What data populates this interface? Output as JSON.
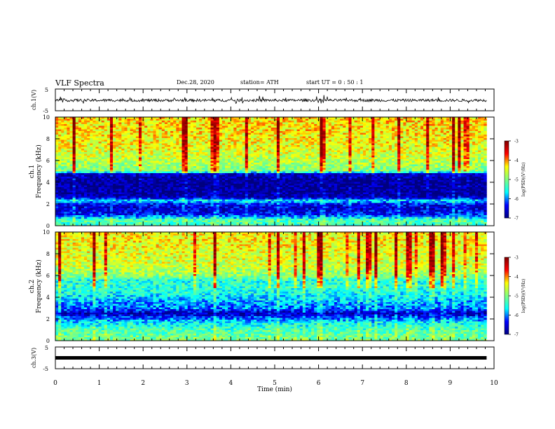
{
  "header": {
    "title": "VLF Spectra",
    "date": "Dec.28, 2020",
    "station": "station= ATH",
    "start_ut": "start  UT  =   0  : 50 : 1"
  },
  "colormap": {
    "stops": [
      "#00007f",
      "#0000ff",
      "#00ffff",
      "#7fff7f",
      "#ffff00",
      "#ff0000",
      "#7f0000"
    ]
  },
  "chart_data": [
    {
      "type": "line",
      "name": "ch1-waveform",
      "ylabel": "ch.1(V)",
      "ylim": [
        -5,
        5
      ],
      "yticks": [
        "5",
        "-5"
      ],
      "x_range_min": [
        0,
        9.83
      ],
      "baseline_v": -0.2,
      "noise_v": 0.6
    },
    {
      "type": "heatmap",
      "name": "ch1-spectrogram",
      "ylabel": "ch.1\nFrequency (kHz)",
      "ylabel_line1": "ch.1",
      "ylabel_line2": "Frequency  (kHz)",
      "ylim": [
        0,
        10
      ],
      "yticks": [
        "0",
        "2",
        "4",
        "6",
        "8",
        "10"
      ],
      "x_range_min": [
        0,
        9.83
      ],
      "colorbar": {
        "label": "log(PSD)(V²/Hz)",
        "range": [
          -7,
          -3
        ],
        "ticks": [
          "-3",
          "-4",
          "-5",
          "-6",
          "-7"
        ]
      },
      "profile_khz_log_psd": [
        [
          0,
          -5.4
        ],
        [
          0.5,
          -5.2
        ],
        [
          1.0,
          -6.3
        ],
        [
          1.5,
          -6.6
        ],
        [
          2.0,
          -6.4
        ],
        [
          2.3,
          -5.6
        ],
        [
          2.6,
          -6.7
        ],
        [
          3.0,
          -6.8
        ],
        [
          4.0,
          -6.9
        ],
        [
          4.8,
          -6.6
        ],
        [
          5.0,
          -5.0
        ],
        [
          6.0,
          -4.7
        ],
        [
          7.0,
          -4.5
        ],
        [
          8.0,
          -4.4
        ],
        [
          9.0,
          -4.3
        ],
        [
          10.0,
          -4.3
        ]
      ]
    },
    {
      "type": "heatmap",
      "name": "ch2-spectrogram",
      "ylabel": "ch.2\nFrequency (kHz)",
      "ylabel_line1": "ch.2",
      "ylabel_line2": "Frequency  (kHz)",
      "ylim": [
        0,
        10
      ],
      "yticks": [
        "0",
        "2",
        "4",
        "6",
        "8",
        "10"
      ],
      "x_range_min": [
        0,
        9.83
      ],
      "colorbar": {
        "label": "log(PSD)(V²/Hz)",
        "range": [
          -7,
          -3
        ],
        "ticks": [
          "-3",
          "-4",
          "-5",
          "-6",
          "-7"
        ]
      },
      "profile_khz_log_psd": [
        [
          0,
          -5.0
        ],
        [
          1.0,
          -5.3
        ],
        [
          1.6,
          -5.6
        ],
        [
          2.0,
          -6.0
        ],
        [
          2.5,
          -6.7
        ],
        [
          3.0,
          -6.0
        ],
        [
          3.5,
          -5.9
        ],
        [
          4.0,
          -5.7
        ],
        [
          4.5,
          -5.5
        ],
        [
          5.0,
          -5.4
        ],
        [
          5.5,
          -5.5
        ],
        [
          6.0,
          -4.9
        ],
        [
          7.0,
          -4.6
        ],
        [
          8.0,
          -4.5
        ],
        [
          9.0,
          -4.4
        ],
        [
          10.0,
          -4.4
        ]
      ]
    },
    {
      "type": "line",
      "name": "ch3-waveform",
      "ylabel": "ch.3(V)",
      "ylim": [
        -5,
        5
      ],
      "yticks": [
        "5",
        "-5"
      ],
      "x_range_min": [
        0,
        9.83
      ],
      "level_v": 0
    }
  ],
  "x_axis": {
    "label": "Time  (min)",
    "ticks": [
      "0",
      "1",
      "2",
      "3",
      "4",
      "5",
      "6",
      "7",
      "8",
      "9",
      "10"
    ],
    "range": [
      0,
      10
    ]
  }
}
